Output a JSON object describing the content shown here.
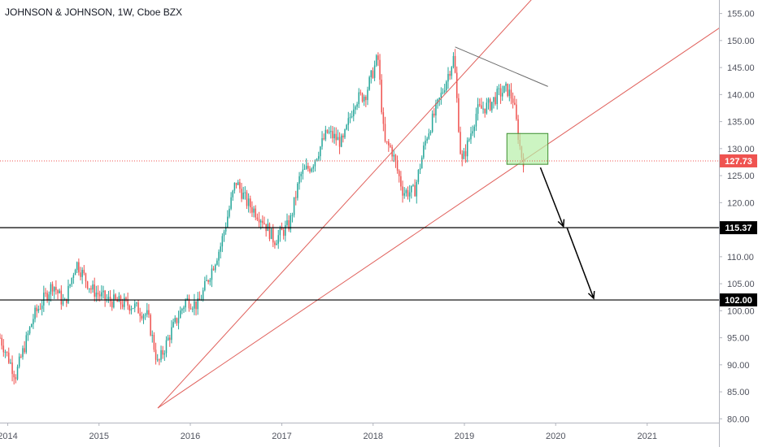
{
  "header": {
    "title": "JOHNSON & JOHNSON, 1W, Cboe BZX"
  },
  "colors": {
    "up": "#26a69a",
    "down": "#ef5350",
    "trendline": "#e0605b",
    "gray_trendline": "#6b6b6b",
    "level_line": "#000000",
    "box_fill": "#b7f0a8",
    "box_stroke": "#3c8d2f",
    "current_price": "#ef5350",
    "axis_text": "#50535e"
  },
  "chart_data": {
    "type": "candlestick",
    "title": "JOHNSON & JOHNSON, 1W, Cboe BZX",
    "xlabel": "",
    "ylabel": "",
    "xlim": [
      "2013-12-01",
      "2021-10-15"
    ],
    "ylim": [
      79.3,
      157.5
    ],
    "y_axis_side": "right",
    "grid": false,
    "x_ticks": [
      "2014",
      "2015",
      "2016",
      "2017",
      "2018",
      "2019",
      "2020",
      "2021"
    ],
    "y_ticks": [
      80,
      85,
      90,
      95,
      100,
      105,
      110,
      115,
      120,
      125,
      130,
      135,
      140,
      145,
      150,
      155
    ],
    "y_tick_labels": [
      "80.00",
      "85.00",
      "90.00",
      "95.00",
      "100.00",
      "105.00",
      "110.00",
      "115.00",
      "120.00",
      "125.00",
      "130.00",
      "135.00",
      "140.00",
      "145.00",
      "150.00",
      "155.00"
    ],
    "series": [
      {
        "kind": "weekly-closes",
        "anchors": [
          [
            "2013-12-01",
            95
          ],
          [
            "2014-02-01",
            88
          ],
          [
            "2014-04-15",
            99
          ],
          [
            "2014-07-01",
            105
          ],
          [
            "2014-08-15",
            101
          ],
          [
            "2014-10-01",
            109
          ],
          [
            "2014-12-01",
            104
          ],
          [
            "2015-02-01",
            102
          ],
          [
            "2015-05-15",
            101
          ],
          [
            "2015-07-15",
            99
          ],
          [
            "2015-08-24",
            90
          ],
          [
            "2015-10-15",
            96
          ],
          [
            "2015-12-15",
            102
          ],
          [
            "2016-02-01",
            101
          ],
          [
            "2016-05-01",
            112
          ],
          [
            "2016-07-01",
            124
          ],
          [
            "2016-08-15",
            120
          ],
          [
            "2016-10-15",
            117
          ],
          [
            "2016-12-01",
            113
          ],
          [
            "2017-02-01",
            116
          ],
          [
            "2017-03-15",
            125
          ],
          [
            "2017-05-01",
            127
          ],
          [
            "2017-07-01",
            133
          ],
          [
            "2017-09-01",
            131
          ],
          [
            "2017-10-20",
            139
          ],
          [
            "2017-12-01",
            140
          ],
          [
            "2018-01-20",
            147
          ],
          [
            "2018-02-15",
            131
          ],
          [
            "2018-03-15",
            130
          ],
          [
            "2018-05-01",
            122
          ],
          [
            "2018-06-15",
            122
          ],
          [
            "2018-08-01",
            132
          ],
          [
            "2018-10-01",
            140
          ],
          [
            "2018-11-20",
            147
          ],
          [
            "2018-12-20",
            127
          ],
          [
            "2019-01-15",
            131
          ],
          [
            "2019-02-20",
            137
          ],
          [
            "2019-04-10",
            138
          ],
          [
            "2019-05-15",
            140
          ],
          [
            "2019-06-20",
            141
          ],
          [
            "2019-07-15",
            139
          ],
          [
            "2019-08-15",
            129
          ],
          [
            "2019-08-25",
            128
          ]
        ]
      }
    ],
    "current_price": 127.73,
    "current_price_label": "127.73",
    "levels": [
      {
        "price": 115.37,
        "label": "115.37"
      },
      {
        "price": 102.0,
        "label": "102.00"
      }
    ],
    "trendlines": [
      {
        "name": "steep-support",
        "from": [
          "2015-08-24",
          82.0
        ],
        "to": [
          "2019-01-01",
          144.0
        ],
        "extend": "right"
      },
      {
        "name": "lower-support",
        "from": [
          "2015-08-24",
          82.0
        ],
        "to": [
          "2019-09-01",
          128.0
        ],
        "extend": "right"
      },
      {
        "name": "top-resistance",
        "from": [
          "2018-11-25",
          148.8
        ],
        "to": [
          "2019-12-01",
          141.5
        ],
        "extend": "none"
      }
    ],
    "annotations": [
      {
        "type": "rectangle",
        "from": [
          "2019-06-20",
          132.8
        ],
        "to": [
          "2019-12-01",
          127.1
        ]
      },
      {
        "type": "arrow",
        "from": [
          "2019-11-01",
          126.5
        ],
        "to": [
          "2020-02-01",
          115.6
        ]
      },
      {
        "type": "arrow",
        "from": [
          "2020-02-15",
          115.4
        ],
        "to": [
          "2020-06-01",
          102.3
        ]
      }
    ]
  }
}
